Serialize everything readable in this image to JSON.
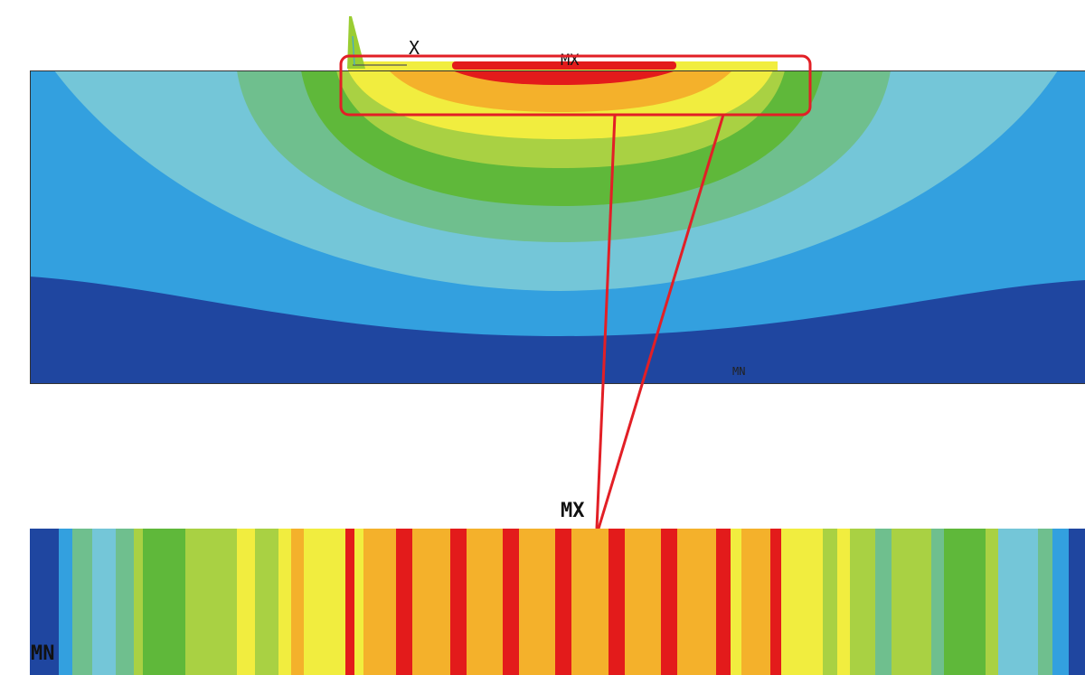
{
  "palette": {
    "dark_blue": "#1f46a0",
    "blue": "#33a0df",
    "light_blue": "#74c6d8",
    "teal_green": "#6fbf8e",
    "green": "#5fb83a",
    "yellow_green": "#a9d143",
    "yellow": "#f1ed3f",
    "orange": "#f4b12b",
    "red": "#e31b1b",
    "frame": "#e21f26",
    "axis_triad": "#9acd32"
  },
  "labels": {
    "top_max": "MX",
    "top_min": "MN",
    "axis_x": "X",
    "zoom_max": "MX",
    "zoom_min": "MN"
  },
  "icons": {
    "axis_triad": "coordinate-triad-icon"
  }
}
